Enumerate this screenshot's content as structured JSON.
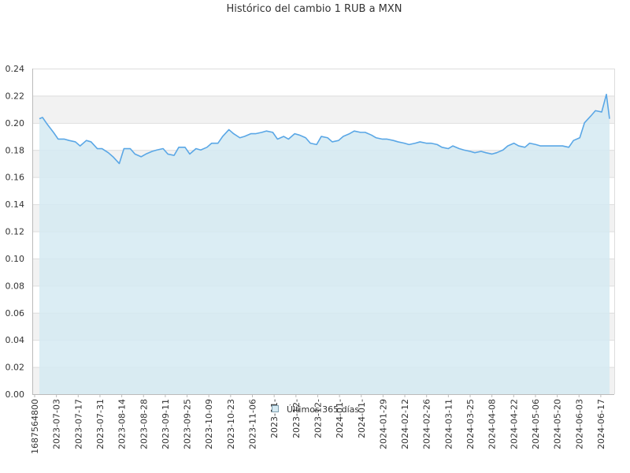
{
  "chart_data": {
    "type": "area",
    "title": "Histórico del cambio 1 RUB a MXN",
    "xlabel": "",
    "ylabel": "",
    "ylim": [
      0,
      0.24
    ],
    "y_ticks": [
      "0.00",
      "0.02",
      "0.04",
      "0.06",
      "0.08",
      "0.10",
      "0.12",
      "0.14",
      "0.16",
      "0.18",
      "0.20",
      "0.22",
      "0.24"
    ],
    "x_ticks": [
      "1687564800",
      "2023-07-03",
      "2023-07-17",
      "2023-07-31",
      "2023-08-14",
      "2023-08-28",
      "2023-09-11",
      "2023-09-25",
      "2023-10-09",
      "2023-10-23",
      "2023-11-06",
      "2023-11-",
      "2023-12-",
      "2023-12-",
      "2024-01-",
      "2024-01-",
      "2024-01-29",
      "2024-02-12",
      "2024-02-26",
      "2024-03-11",
      "2024-03-25",
      "2024-04-08",
      "2024-04-22",
      "2024-05-06",
      "2024-05-20",
      "2024-06-03",
      "2024-06-17"
    ],
    "grid": true,
    "legend_position": "bottom-center",
    "colors": {
      "line": "#5aa7e6",
      "fill": "#d5eaf2",
      "band": "#f2f2f2",
      "gridline": "#dddddd"
    },
    "series": [
      {
        "name": "Últimos 365 días",
        "x": [
          "2023-06-24",
          "2023-06-26",
          "2023-06-29",
          "2023-07-03",
          "2023-07-06",
          "2023-07-10",
          "2023-07-13",
          "2023-07-17",
          "2023-07-20",
          "2023-07-24",
          "2023-07-27",
          "2023-07-31",
          "2023-08-03",
          "2023-08-07",
          "2023-08-10",
          "2023-08-14",
          "2023-08-17",
          "2023-08-21",
          "2023-08-24",
          "2023-08-28",
          "2023-08-31",
          "2023-09-04",
          "2023-09-07",
          "2023-09-11",
          "2023-09-14",
          "2023-09-18",
          "2023-09-21",
          "2023-09-25",
          "2023-09-28",
          "2023-10-02",
          "2023-10-05",
          "2023-10-09",
          "2023-10-12",
          "2023-10-16",
          "2023-10-19",
          "2023-10-23",
          "2023-10-26",
          "2023-10-30",
          "2023-11-02",
          "2023-11-06",
          "2023-11-09",
          "2023-11-13",
          "2023-11-16",
          "2023-11-20",
          "2023-11-23",
          "2023-11-27",
          "2023-11-30",
          "2023-12-04",
          "2023-12-07",
          "2023-12-11",
          "2023-12-14",
          "2023-12-18",
          "2023-12-21",
          "2023-12-25",
          "2023-12-28",
          "2024-01-01",
          "2024-01-04",
          "2024-01-08",
          "2024-01-11",
          "2024-01-15",
          "2024-01-18",
          "2024-01-22",
          "2024-01-25",
          "2024-01-29",
          "2024-02-01",
          "2024-02-05",
          "2024-02-08",
          "2024-02-12",
          "2024-02-15",
          "2024-02-19",
          "2024-02-22",
          "2024-02-26",
          "2024-02-29",
          "2024-03-04",
          "2024-03-07",
          "2024-03-11",
          "2024-03-14",
          "2024-03-18",
          "2024-03-21",
          "2024-03-25",
          "2024-03-28",
          "2024-04-01",
          "2024-04-04",
          "2024-04-08",
          "2024-04-11",
          "2024-04-15",
          "2024-04-18",
          "2024-04-22",
          "2024-04-25",
          "2024-04-29",
          "2024-05-02",
          "2024-05-06",
          "2024-05-09",
          "2024-05-13",
          "2024-05-16",
          "2024-05-20",
          "2024-05-23",
          "2024-05-27",
          "2024-05-30",
          "2024-06-03",
          "2024-06-06",
          "2024-06-10",
          "2024-06-13",
          "2024-06-17",
          "2024-06-20",
          "2024-06-22"
        ],
        "values": [
          0.203,
          0.204,
          0.199,
          0.193,
          0.188,
          0.188,
          0.187,
          0.186,
          0.183,
          0.187,
          0.186,
          0.181,
          0.181,
          0.178,
          0.175,
          0.17,
          0.181,
          0.181,
          0.177,
          0.175,
          0.177,
          0.179,
          0.18,
          0.181,
          0.177,
          0.176,
          0.182,
          0.182,
          0.177,
          0.181,
          0.18,
          0.182,
          0.185,
          0.185,
          0.19,
          0.195,
          0.192,
          0.189,
          0.19,
          0.192,
          0.192,
          0.193,
          0.194,
          0.193,
          0.188,
          0.19,
          0.188,
          0.192,
          0.191,
          0.189,
          0.185,
          0.184,
          0.19,
          0.189,
          0.186,
          0.187,
          0.19,
          0.192,
          0.194,
          0.193,
          0.193,
          0.191,
          0.189,
          0.188,
          0.188,
          0.187,
          0.186,
          0.185,
          0.184,
          0.185,
          0.186,
          0.185,
          0.185,
          0.184,
          0.182,
          0.181,
          0.183,
          0.181,
          0.18,
          0.179,
          0.178,
          0.179,
          0.178,
          0.177,
          0.178,
          0.18,
          0.183,
          0.185,
          0.183,
          0.182,
          0.185,
          0.184,
          0.183,
          0.183,
          0.183,
          0.183,
          0.183,
          0.182,
          0.187,
          0.189,
          0.2,
          0.205,
          0.209,
          0.208,
          0.221,
          0.203
        ]
      }
    ]
  }
}
